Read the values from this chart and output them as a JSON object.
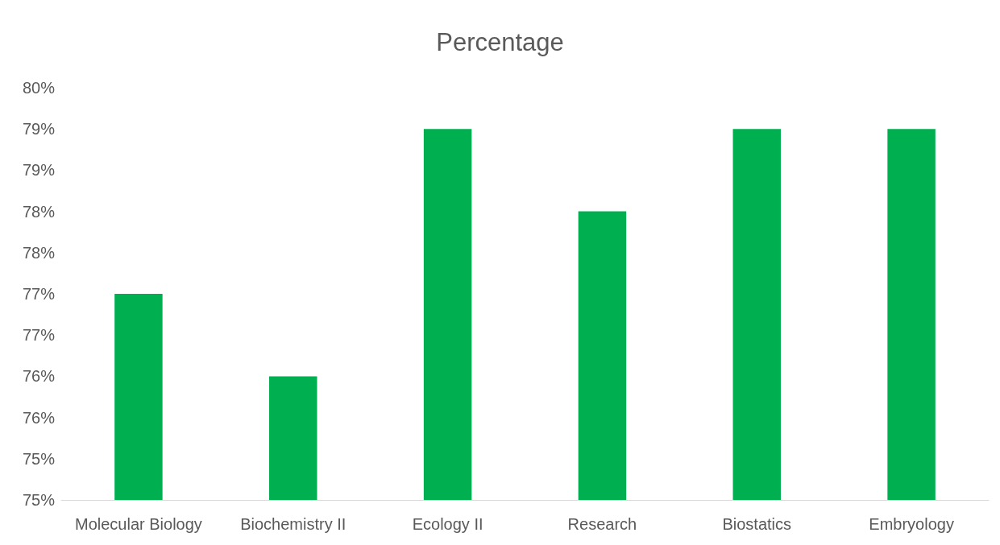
{
  "chart_data": {
    "type": "bar",
    "title": "Percentage",
    "categories": [
      "Molecular Biology",
      "Biochemistry II",
      "Ecology II",
      "Research",
      "Biostatics",
      "Embryology"
    ],
    "values": [
      77.5,
      76.5,
      79.5,
      78.5,
      79.5,
      79.5
    ],
    "color": "#00b050",
    "ylim": [
      75,
      80
    ],
    "yticks": [
      {
        "value": 75,
        "label": "75%"
      },
      {
        "value": 75.5,
        "label": "75%"
      },
      {
        "value": 76,
        "label": "76%"
      },
      {
        "value": 76.5,
        "label": "76%"
      },
      {
        "value": 77,
        "label": "77%"
      },
      {
        "value": 77.5,
        "label": "77%"
      },
      {
        "value": 78,
        "label": "78%"
      },
      {
        "value": 78.5,
        "label": "78%"
      },
      {
        "value": 79,
        "label": "79%"
      },
      {
        "value": 79.5,
        "label": "79%"
      },
      {
        "value": 80,
        "label": "80%"
      }
    ],
    "grid": false
  }
}
